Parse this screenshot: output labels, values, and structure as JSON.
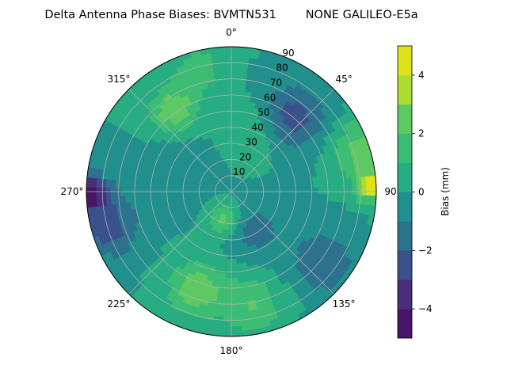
{
  "chart_data": {
    "type": "polar-contour",
    "title": "Delta Antenna Phase Biases: BVMTN531        NONE GALILEO-E5a",
    "angular_ticks": [
      {
        "deg": 0,
        "label": "0°"
      },
      {
        "deg": 45,
        "label": "45°"
      },
      {
        "deg": 90,
        "label": "90"
      },
      {
        "deg": 135,
        "label": "135°"
      },
      {
        "deg": 180,
        "label": "180°"
      },
      {
        "deg": 225,
        "label": "225°"
      },
      {
        "deg": 270,
        "label": "270°"
      },
      {
        "deg": 315,
        "label": "315°"
      }
    ],
    "angular_direction": "clockwise",
    "angular_zero": "top",
    "radial_ticks": [
      10,
      20,
      30,
      40,
      50,
      60,
      70,
      80,
      90
    ],
    "radial_range": [
      0,
      90
    ],
    "radial_label_angle_deg": 22.5,
    "grid": true,
    "colorbar": {
      "label": "Bias (mm)",
      "range": [
        -5,
        5
      ],
      "levels": [
        -5,
        -4,
        -3,
        -2,
        -1,
        0,
        1,
        2,
        3,
        4,
        5
      ],
      "tick_values": [
        -4,
        -2,
        0,
        2,
        4
      ],
      "tick_labels": [
        "−4",
        "−2",
        "0",
        "2",
        "4"
      ],
      "colormap": "viridis",
      "colors": [
        "#481467",
        "#472f7d",
        "#3b518b",
        "#2c718e",
        "#21908d",
        "#27ad81",
        "#3dbc74",
        "#5ec962",
        "#addc30",
        "#dde318"
      ]
    },
    "features": [
      {
        "az": 88,
        "el": 88,
        "bias": 4.5,
        "spread": 7
      },
      {
        "az": 72,
        "el": 84,
        "bias": 2.5,
        "spread": 12
      },
      {
        "az": 270,
        "el": 88,
        "bias": -4.0,
        "spread": 8
      },
      {
        "az": 255,
        "el": 80,
        "bias": -2.5,
        "spread": 14
      },
      {
        "az": 40,
        "el": 60,
        "bias": -2.5,
        "spread": 14
      },
      {
        "az": 128,
        "el": 72,
        "bias": -2.0,
        "spread": 14
      },
      {
        "az": 200,
        "el": 65,
        "bias": 2.8,
        "spread": 12
      },
      {
        "az": 170,
        "el": 72,
        "bias": 2.0,
        "spread": 13
      },
      {
        "az": 325,
        "el": 62,
        "bias": 2.8,
        "spread": 10
      },
      {
        "az": 345,
        "el": 78,
        "bias": 1.5,
        "spread": 12
      },
      {
        "az": 195,
        "el": 18,
        "bias": 2.5,
        "spread": 7
      },
      {
        "az": 150,
        "el": 28,
        "bias": -1.5,
        "spread": 12
      },
      {
        "az": 290,
        "el": 35,
        "bias": -1.0,
        "spread": 14
      },
      {
        "az": 20,
        "el": 40,
        "bias": 1.2,
        "spread": 12
      }
    ]
  }
}
